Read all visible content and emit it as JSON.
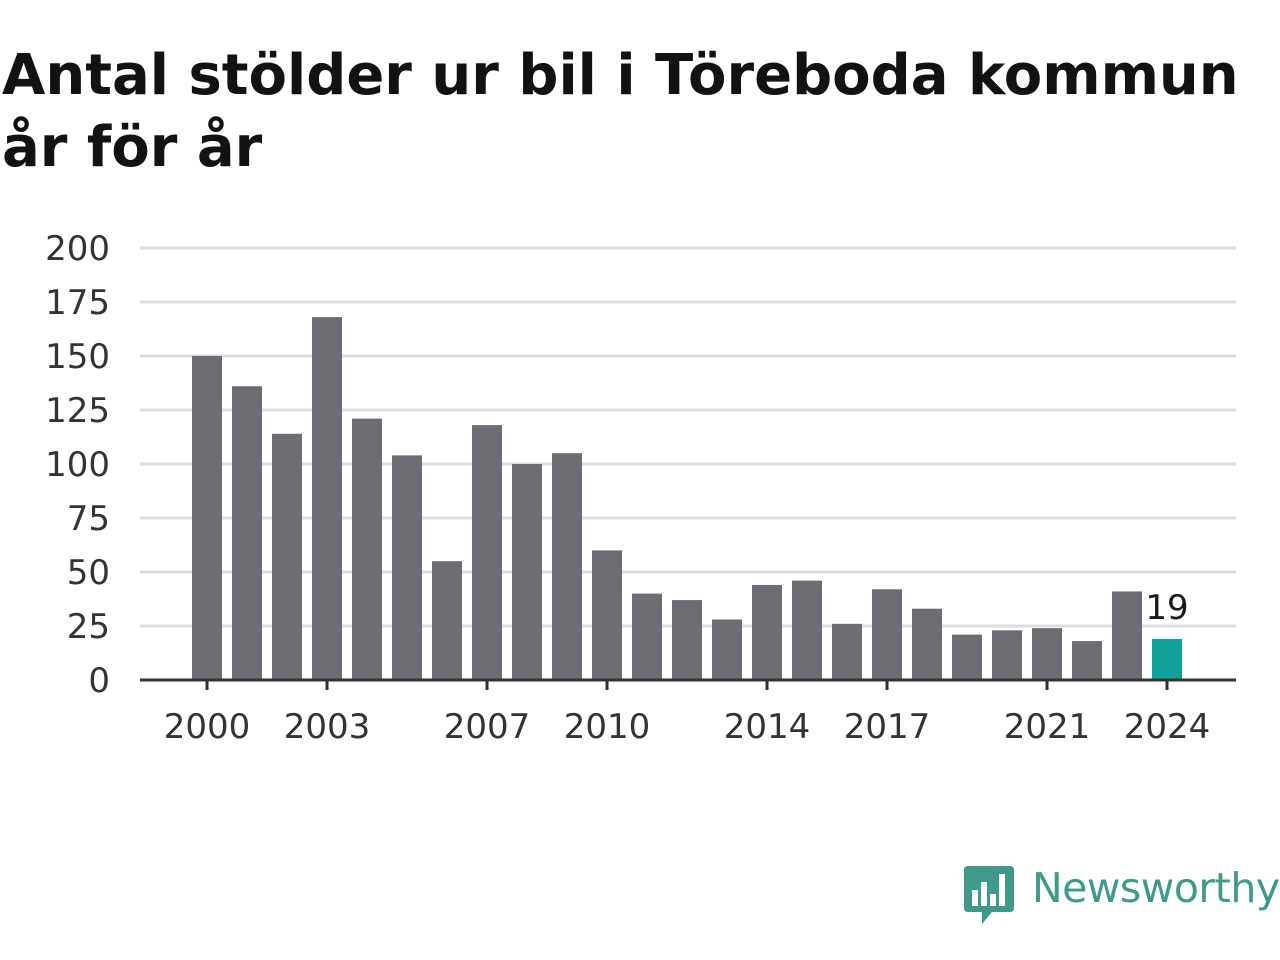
{
  "title": "Antal stölder ur bil i Töreboda kommun år för år",
  "brand": {
    "name": "Newsworthy",
    "color": "#3f9a8c",
    "icon": "bar-chart-speech-bubble-icon"
  },
  "colors": {
    "bar": "#6d6c72",
    "highlight": "#12a19a",
    "grid": "#dcdcdc",
    "axis": "#333333"
  },
  "chart_data": {
    "type": "bar",
    "title": "Antal stölder ur bil i Töreboda kommun år för år",
    "xlabel": "",
    "ylabel": "",
    "categories": [
      "2000",
      "2001",
      "2002",
      "2003",
      "2004",
      "2005",
      "2006",
      "2007",
      "2008",
      "2009",
      "2010",
      "2011",
      "2012",
      "2013",
      "2014",
      "2015",
      "2016",
      "2017",
      "2018",
      "2019",
      "2020",
      "2021",
      "2022",
      "2023",
      "2024"
    ],
    "values": [
      150,
      136,
      114,
      168,
      121,
      104,
      55,
      118,
      100,
      105,
      60,
      40,
      37,
      28,
      44,
      46,
      26,
      42,
      33,
      21,
      23,
      24,
      18,
      41,
      19
    ],
    "x_tick_labels": [
      "2000",
      "2003",
      "2007",
      "2010",
      "2014",
      "2017",
      "2021",
      "2024"
    ],
    "y_ticks": [
      0,
      25,
      50,
      75,
      100,
      125,
      150,
      175,
      200
    ],
    "ylim": [
      0,
      200
    ],
    "highlight": {
      "category": "2024",
      "label": "19"
    },
    "grid": true,
    "legend": "none"
  }
}
